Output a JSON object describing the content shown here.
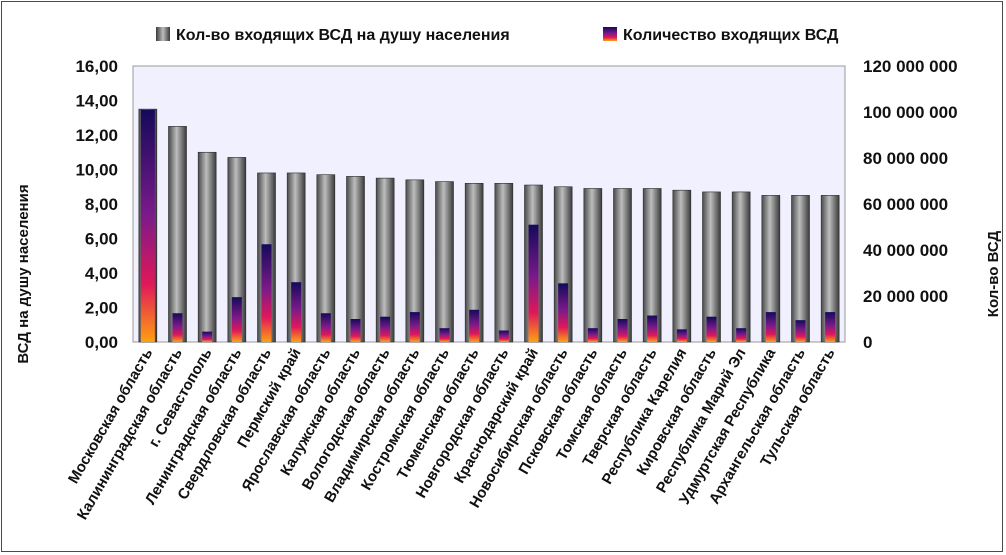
{
  "chart_data": {
    "type": "bar",
    "categories": [
      "Московская область",
      "Калининградская область",
      "г. Севастополь",
      "Ленинградская область",
      "Свердловская область",
      "Пермский край",
      "Ярославская область",
      "Калужская область",
      "Вологодская область",
      "Владимирская область",
      "Костромская область",
      "Тюменская область",
      "Новгородская область",
      "Краснодарский край",
      "Новосибирская область",
      "Псковская область",
      "Томская область",
      "Тверская область",
      "Республика Карелия",
      "Кировская область",
      "Республика Марий Эл",
      "Удмуртская Республика",
      "Архангельская область",
      "Тульская область"
    ],
    "series": [
      {
        "name": "Кол-во входящих ВСД на душу населения",
        "axis": "left",
        "color": "#7a7a7a",
        "values": [
          13.5,
          12.5,
          11.0,
          10.7,
          9.8,
          9.8,
          9.7,
          9.6,
          9.5,
          9.4,
          9.3,
          9.2,
          9.2,
          9.1,
          9.0,
          8.9,
          8.9,
          8.9,
          8.8,
          8.7,
          8.7,
          8.5,
          8.5,
          8.5
        ]
      },
      {
        "name": "Количество входящих ВСД",
        "axis": "right",
        "color": "#2a1a6a",
        "values": [
          101000000,
          12500000,
          4500000,
          19500000,
          42500000,
          26000000,
          12500000,
          10000000,
          11000000,
          13000000,
          6000000,
          14000000,
          5000000,
          51000000,
          25500000,
          6000000,
          10000000,
          11500000,
          5500000,
          11000000,
          6000000,
          13000000,
          9500000,
          13000000
        ]
      }
    ],
    "yAxisLeft": {
      "title": "ВСД на душу населения",
      "range": [
        0,
        16
      ],
      "ticks": [
        "0,00",
        "2,00",
        "4,00",
        "6,00",
        "8,00",
        "10,00",
        "12,00",
        "14,00",
        "16,00"
      ]
    },
    "yAxisRight": {
      "title": "Кол-во ВСД",
      "range": [
        0,
        120000000
      ],
      "ticks": [
        "0",
        "20 000 000",
        "40 000 000",
        "60 000 000",
        "80 000 000",
        "100 000 000",
        "120 000 000"
      ]
    },
    "legend": "top-center",
    "grid": false
  }
}
